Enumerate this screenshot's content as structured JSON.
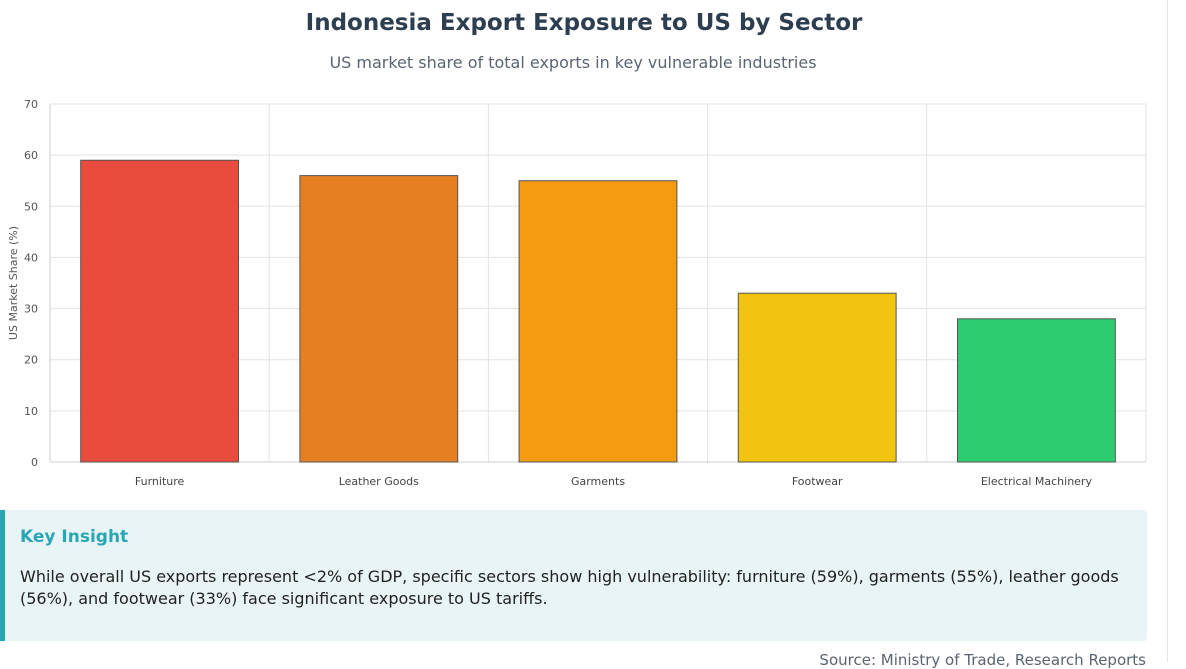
{
  "header": {
    "title": "Indonesia Export Exposure to US by Sector",
    "subtitle": "US market share of total exports in key vulnerable industries"
  },
  "chart_data": {
    "type": "bar",
    "categories": [
      "Furniture",
      "Leather Goods",
      "Garments",
      "Footwear",
      "Electrical Machinery"
    ],
    "values": [
      59,
      56,
      55,
      33,
      28
    ],
    "colors": [
      "#e74c3c",
      "#e67e22",
      "#f39c12",
      "#f1c40f",
      "#2ecc71"
    ],
    "ylabel": "US Market Share (%)",
    "ylim": [
      0,
      70
    ],
    "yticks": [
      0,
      10,
      20,
      30,
      40,
      50,
      60,
      70
    ],
    "grid": true
  },
  "insight": {
    "title": "Key Insight",
    "text": "While overall US exports represent <2% of GDP, specific sectors show high vulnerability: furniture (59%), garments (55%), leather goods (56%), and footwear (33%) face significant exposure to US tariffs."
  },
  "footer": {
    "source": "Source: Ministry of Trade, Research Reports"
  }
}
